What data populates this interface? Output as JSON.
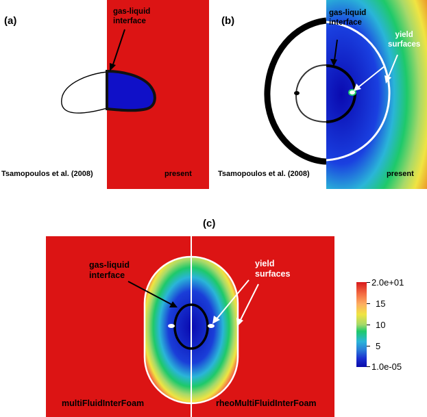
{
  "panels": {
    "a": {
      "label": "(a)",
      "left_caption": "Tsamopoulos et al. (2008)",
      "right_caption": "present",
      "annotation": [
        "gas-liquid",
        "interface"
      ]
    },
    "b": {
      "label": "(b)",
      "left_caption": "Tsamopoulos et al. (2008)",
      "right_caption": "present",
      "annotation_interface": [
        "gas-liquid",
        "interface"
      ],
      "annotation_yield": [
        "yield",
        "surfaces"
      ]
    },
    "c": {
      "label": "(c)",
      "left_caption": "multiFluidInterFoam",
      "right_caption": "rheoMultiFluidInterFoam",
      "annotation_interface": [
        "gas-liquid",
        "interface"
      ],
      "annotation_yield": [
        "yield",
        "surfaces"
      ]
    }
  },
  "colorbar": {
    "max_label": "2.0e+01",
    "min_label": "1.0e-05",
    "ticks": [
      "15",
      "10",
      "5"
    ],
    "colors": [
      "#d7191c",
      "#f46d43",
      "#fdae61",
      "#f0e442",
      "#a6d96a",
      "#1ec96a",
      "#2ab5d8",
      "#2a7bd8",
      "#1a2fd0",
      "#0a0aa8"
    ]
  },
  "colors": {
    "field_red": "#dc1414",
    "bubble_blue": "#1010c8"
  }
}
